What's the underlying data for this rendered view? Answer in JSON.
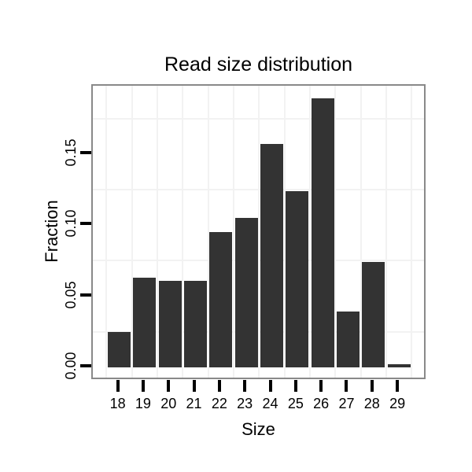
{
  "chart_data": {
    "type": "bar",
    "title": "Read size distribution",
    "xlabel": "Size",
    "ylabel": "Fraction",
    "categories": [
      "18",
      "19",
      "20",
      "21",
      "22",
      "23",
      "24",
      "25",
      "26",
      "27",
      "28",
      "29"
    ],
    "values": [
      0.025,
      0.063,
      0.061,
      0.061,
      0.095,
      0.105,
      0.157,
      0.124,
      0.189,
      0.039,
      0.074,
      0.002
    ],
    "yticks": [
      0.0,
      0.05,
      0.1,
      0.15
    ],
    "ytick_labels": [
      "0.00",
      "0.05",
      "0.10",
      "0.15"
    ],
    "minor_gridlines_y": [
      0.025,
      0.075,
      0.125,
      0.175
    ],
    "ylim": [
      -0.0095,
      0.198
    ],
    "grid": "minor-only",
    "legend": "none",
    "colors": {
      "bar_fill": "#333333",
      "panel_border": "#898989",
      "gridline": "#f2f2f2",
      "tick": "#000000",
      "text": "#000000",
      "background": "#ffffff"
    }
  }
}
